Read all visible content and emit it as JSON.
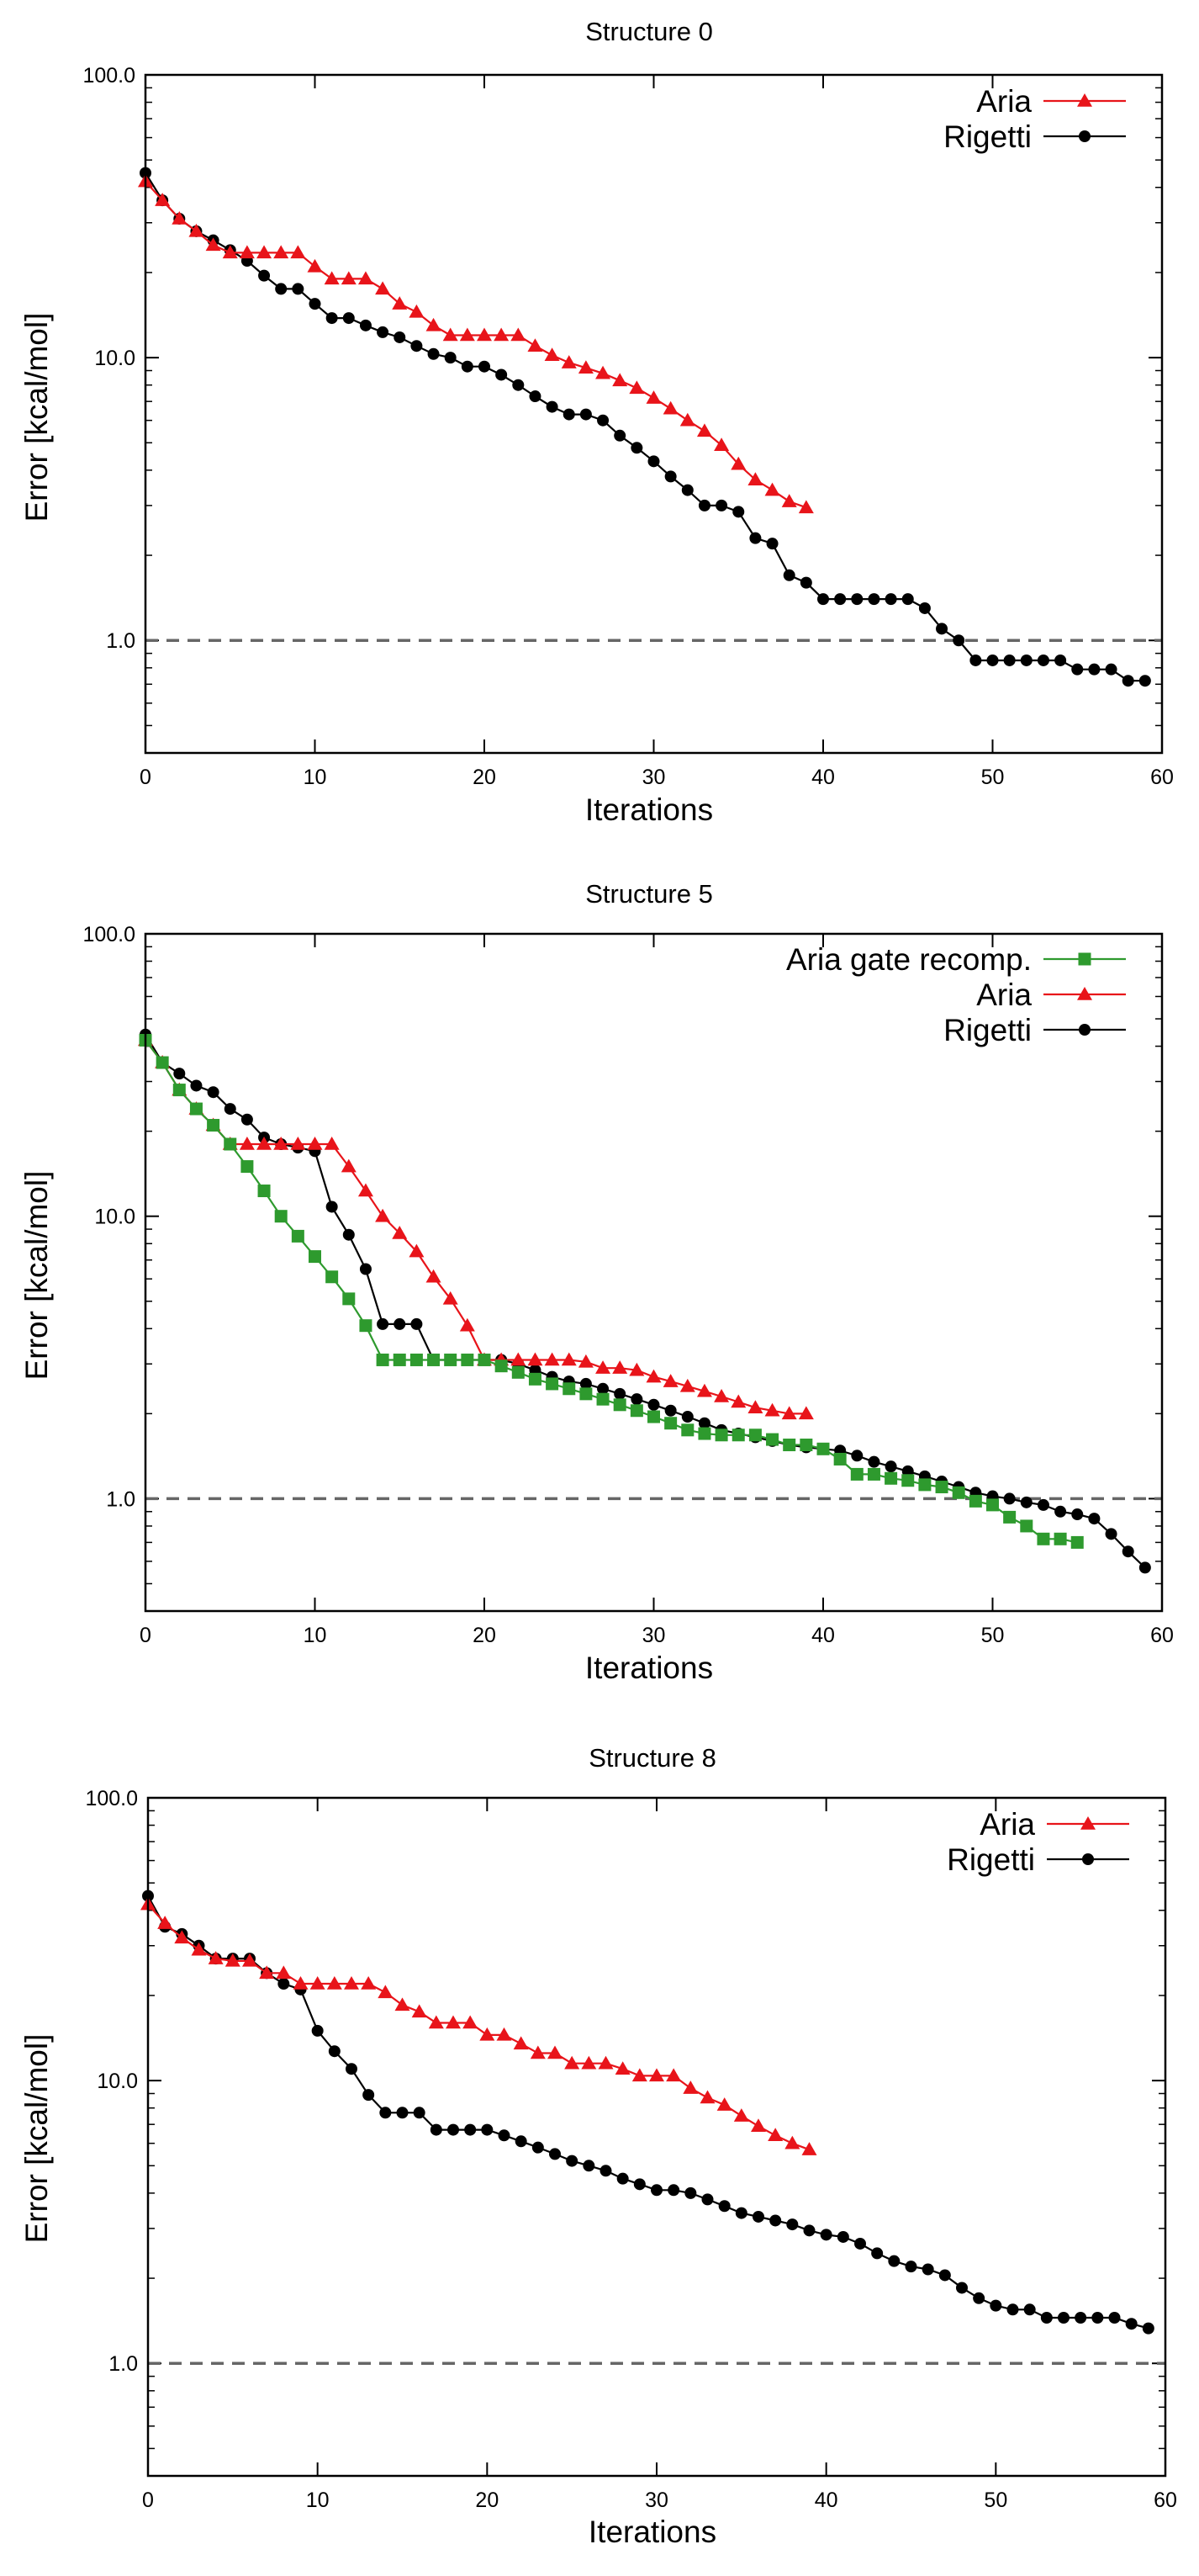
{
  "colors": {
    "aria": "#e8141a",
    "rigetti": "#000000",
    "aria_gate": "#2e9a2e",
    "reference": "#666666"
  },
  "chart_data": [
    {
      "type": "line",
      "title": "Structure 0",
      "xlabel": "Iterations",
      "ylabel": "Error [kcal/mol]",
      "yscale": "log",
      "xlim": [
        0,
        60
      ],
      "ylim": [
        0.4,
        100
      ],
      "xticks": [
        "0",
        "10",
        "20",
        "30",
        "40",
        "50",
        "60"
      ],
      "yticks": [
        {
          "value": 1,
          "label": "1.0"
        },
        {
          "value": 10,
          "label": "10.0"
        },
        {
          "value": 100,
          "label": "100.0"
        }
      ],
      "reference_line": 1.0,
      "legend_position": "top-right",
      "series": [
        {
          "name": "Aria",
          "marker": "triangle",
          "color_key": "aria",
          "x": [
            0,
            1,
            2,
            3,
            4,
            5,
            6,
            7,
            8,
            9,
            10,
            11,
            12,
            13,
            14,
            15,
            16,
            17,
            18,
            19,
            20,
            21,
            22,
            23,
            24,
            25,
            26,
            27,
            28,
            29,
            30,
            31,
            32,
            33,
            34,
            35,
            36,
            37,
            38,
            39
          ],
          "y": [
            42,
            36,
            31,
            28,
            25,
            23.5,
            23.5,
            23.5,
            23.5,
            23.5,
            21,
            19,
            19,
            19,
            17.5,
            15.5,
            14.5,
            13,
            12,
            12,
            12,
            12,
            12,
            11,
            10.2,
            9.6,
            9.2,
            8.8,
            8.3,
            7.8,
            7.2,
            6.6,
            6,
            5.5,
            4.9,
            4.2,
            3.7,
            3.4,
            3.1,
            2.95
          ]
        },
        {
          "name": "Rigetti",
          "marker": "circle",
          "color_key": "rigetti",
          "x": [
            0,
            1,
            2,
            3,
            4,
            5,
            6,
            7,
            8,
            9,
            10,
            11,
            12,
            13,
            14,
            15,
            16,
            17,
            18,
            19,
            20,
            21,
            22,
            23,
            24,
            25,
            26,
            27,
            28,
            29,
            30,
            31,
            32,
            33,
            34,
            35,
            36,
            37,
            38,
            39,
            40,
            41,
            42,
            43,
            44,
            45,
            46,
            47,
            48,
            49,
            50,
            51,
            52,
            53,
            54,
            55,
            56,
            57,
            58,
            59
          ],
          "y": [
            45,
            36,
            31,
            28,
            26,
            24,
            22,
            19.5,
            17.5,
            17.5,
            15.5,
            13.8,
            13.8,
            13,
            12.3,
            11.8,
            11,
            10.3,
            10,
            9.3,
            9.3,
            8.7,
            8,
            7.3,
            6.7,
            6.3,
            6.3,
            6,
            5.3,
            4.8,
            4.3,
            3.8,
            3.4,
            3,
            3,
            2.85,
            2.3,
            2.2,
            1.7,
            1.6,
            1.4,
            1.4,
            1.4,
            1.4,
            1.4,
            1.4,
            1.3,
            1.1,
            1.0,
            0.85,
            0.85,
            0.85,
            0.85,
            0.85,
            0.85,
            0.79,
            0.79,
            0.79,
            0.72,
            0.72
          ]
        }
      ]
    },
    {
      "type": "line",
      "title": "Structure 5",
      "xlabel": "Iterations",
      "ylabel": "Error [kcal/mol]",
      "yscale": "log",
      "xlim": [
        0,
        60
      ],
      "ylim": [
        0.4,
        100
      ],
      "xticks": [
        "0",
        "10",
        "20",
        "30",
        "40",
        "50",
        "60"
      ],
      "yticks": [
        {
          "value": 1,
          "label": "1.0"
        },
        {
          "value": 10,
          "label": "10.0"
        },
        {
          "value": 100,
          "label": "100.0"
        }
      ],
      "reference_line": 1.0,
      "legend_position": "top-right",
      "series": [
        {
          "name": "Aria gate recomp.",
          "marker": "square",
          "color_key": "aria_gate",
          "x": [
            0,
            1,
            2,
            3,
            4,
            5,
            6,
            7,
            8,
            9,
            10,
            11,
            12,
            13,
            14,
            15,
            16,
            17,
            18,
            19,
            20,
            21,
            22,
            23,
            24,
            25,
            26,
            27,
            28,
            29,
            30,
            31,
            32,
            33,
            34,
            35,
            36,
            37,
            38,
            39,
            40,
            41,
            42,
            43,
            44,
            45,
            46,
            47,
            48,
            49,
            50,
            51,
            52,
            53,
            54,
            55
          ],
          "y": [
            42,
            35,
            28,
            24,
            21,
            18,
            15,
            12.3,
            10,
            8.5,
            7.2,
            6.1,
            5.1,
            4.1,
            3.1,
            3.1,
            3.1,
            3.1,
            3.1,
            3.1,
            3.1,
            2.95,
            2.8,
            2.65,
            2.55,
            2.45,
            2.35,
            2.25,
            2.15,
            2.05,
            1.95,
            1.85,
            1.75,
            1.7,
            1.68,
            1.68,
            1.68,
            1.62,
            1.55,
            1.55,
            1.5,
            1.38,
            1.22,
            1.22,
            1.18,
            1.16,
            1.12,
            1.1,
            1.05,
            0.98,
            0.95,
            0.86,
            0.8,
            0.72,
            0.72,
            0.7
          ]
        },
        {
          "name": "Aria",
          "marker": "triangle",
          "color_key": "aria",
          "x": [
            0,
            1,
            2,
            3,
            4,
            5,
            6,
            7,
            8,
            9,
            10,
            11,
            12,
            13,
            14,
            15,
            16,
            17,
            18,
            19,
            20,
            21,
            22,
            23,
            24,
            25,
            26,
            27,
            28,
            29,
            30,
            31,
            32,
            33,
            34,
            35,
            36,
            37,
            38,
            39
          ],
          "y": [
            42,
            35,
            28,
            24,
            21,
            18,
            18,
            18,
            18,
            18,
            18,
            18,
            15,
            12.3,
            10,
            8.7,
            7.5,
            6.1,
            5.1,
            4.1,
            3.1,
            3.1,
            3.1,
            3.1,
            3.1,
            3.1,
            3.05,
            2.9,
            2.9,
            2.85,
            2.7,
            2.6,
            2.5,
            2.4,
            2.3,
            2.2,
            2.1,
            2.05,
            2,
            2
          ]
        },
        {
          "name": "Rigetti",
          "marker": "circle",
          "color_key": "rigetti",
          "x": [
            0,
            1,
            2,
            3,
            4,
            5,
            6,
            7,
            8,
            9,
            10,
            11,
            12,
            13,
            14,
            15,
            16,
            17,
            18,
            19,
            20,
            21,
            22,
            23,
            24,
            25,
            26,
            27,
            28,
            29,
            30,
            31,
            32,
            33,
            34,
            35,
            36,
            37,
            38,
            39,
            40,
            41,
            42,
            43,
            44,
            45,
            46,
            47,
            48,
            49,
            50,
            51,
            52,
            53,
            54,
            55,
            56,
            57,
            58,
            59
          ],
          "y": [
            44,
            35,
            32,
            29,
            27.5,
            24,
            22,
            19,
            18,
            17.5,
            17,
            10.8,
            8.6,
            6.5,
            4.15,
            4.15,
            4.15,
            3.1,
            3.1,
            3.1,
            3.1,
            3.1,
            3.0,
            2.85,
            2.7,
            2.6,
            2.55,
            2.45,
            2.35,
            2.25,
            2.15,
            2.05,
            1.95,
            1.85,
            1.75,
            1.7,
            1.65,
            1.6,
            1.55,
            1.52,
            1.5,
            1.48,
            1.42,
            1.35,
            1.3,
            1.25,
            1.2,
            1.15,
            1.1,
            1.05,
            1.02,
            1.0,
            0.97,
            0.95,
            0.9,
            0.88,
            0.85,
            0.75,
            0.65,
            0.57
          ]
        }
      ]
    },
    {
      "type": "line",
      "title": "Structure 8",
      "xlabel": "Iterations",
      "ylabel": "Error [kcal/mol]",
      "yscale": "log",
      "xlim": [
        0,
        60
      ],
      "ylim": [
        0.4,
        100
      ],
      "xticks": [
        "0",
        "10",
        "20",
        "30",
        "40",
        "50",
        "60"
      ],
      "yticks": [
        {
          "value": 1,
          "label": "1.0"
        },
        {
          "value": 10,
          "label": "10.0"
        },
        {
          "value": 100,
          "label": "100.0"
        }
      ],
      "reference_line": 1.0,
      "legend_position": "top-right",
      "series": [
        {
          "name": "Aria",
          "marker": "triangle",
          "color_key": "aria",
          "x": [
            0,
            1,
            2,
            3,
            4,
            5,
            6,
            7,
            8,
            9,
            10,
            11,
            12,
            13,
            14,
            15,
            16,
            17,
            18,
            19,
            20,
            21,
            22,
            23,
            24,
            25,
            26,
            27,
            28,
            29,
            30,
            31,
            32,
            33,
            34,
            35,
            36,
            37,
            38,
            39
          ],
          "y": [
            42,
            36,
            32,
            29,
            27,
            26.5,
            26.5,
            24,
            24,
            22,
            22,
            22,
            22,
            22,
            20.5,
            18.5,
            17.5,
            16,
            16,
            16,
            14.5,
            14.5,
            13.5,
            12.5,
            12.5,
            11.5,
            11.5,
            11.5,
            11,
            10.4,
            10.4,
            10.4,
            9.4,
            8.7,
            8.2,
            7.5,
            6.9,
            6.4,
            6,
            5.7
          ]
        },
        {
          "name": "Rigetti",
          "marker": "circle",
          "color_key": "rigetti",
          "x": [
            0,
            1,
            2,
            3,
            4,
            5,
            6,
            7,
            8,
            9,
            10,
            11,
            12,
            13,
            14,
            15,
            16,
            17,
            18,
            19,
            20,
            21,
            22,
            23,
            24,
            25,
            26,
            27,
            28,
            29,
            30,
            31,
            32,
            33,
            34,
            35,
            36,
            37,
            38,
            39,
            40,
            41,
            42,
            43,
            44,
            45,
            46,
            47,
            48,
            49,
            50,
            51,
            52,
            53,
            54,
            55,
            56,
            57,
            58,
            59
          ],
          "y": [
            45,
            35,
            33,
            30,
            27,
            27,
            27,
            24,
            22,
            21,
            15,
            12.7,
            11,
            8.9,
            7.7,
            7.7,
            7.7,
            6.7,
            6.7,
            6.7,
            6.7,
            6.4,
            6.1,
            5.8,
            5.5,
            5.2,
            5,
            4.8,
            4.5,
            4.3,
            4.1,
            4.1,
            4,
            3.8,
            3.6,
            3.4,
            3.3,
            3.2,
            3.1,
            2.95,
            2.85,
            2.8,
            2.65,
            2.45,
            2.3,
            2.2,
            2.15,
            2.05,
            1.85,
            1.7,
            1.6,
            1.55,
            1.55,
            1.45,
            1.45,
            1.45,
            1.45,
            1.45,
            1.38,
            1.33
          ]
        }
      ]
    }
  ]
}
